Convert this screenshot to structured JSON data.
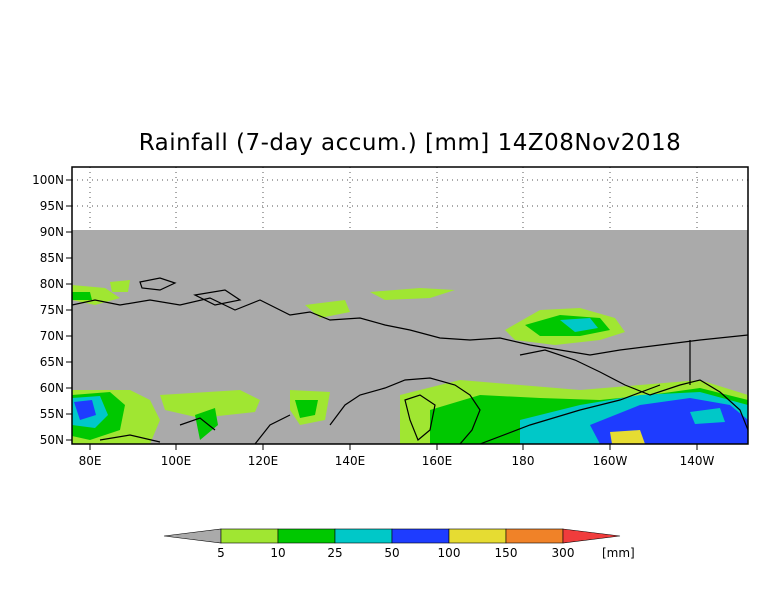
{
  "title": "Rainfall (7-day accum.) [mm] 14Z08Nov2018",
  "map": {
    "lat_labels": [
      "100N",
      "95N",
      "90N",
      "85N",
      "80N",
      "75N",
      "70N",
      "65N",
      "60N",
      "55N",
      "50N"
    ],
    "lon_labels": [
      "80E",
      "100E",
      "120E",
      "140E",
      "160E",
      "180",
      "160W",
      "140W"
    ],
    "background_color": "#aaaaaa",
    "grid": "dotted"
  },
  "legend": {
    "values": [
      "5",
      "10",
      "25",
      "50",
      "100",
      "150",
      "300"
    ],
    "unit": "[mm]",
    "colors": {
      "below_5": "#aaaaaa",
      "5-10": "#a0e632",
      "10-25": "#00c800",
      "25-50": "#00c8c8",
      "50-100": "#1e3cff",
      "100-150": "#e6dc32",
      "150-300": "#f08228",
      "above_300": "#f03c3c"
    }
  }
}
